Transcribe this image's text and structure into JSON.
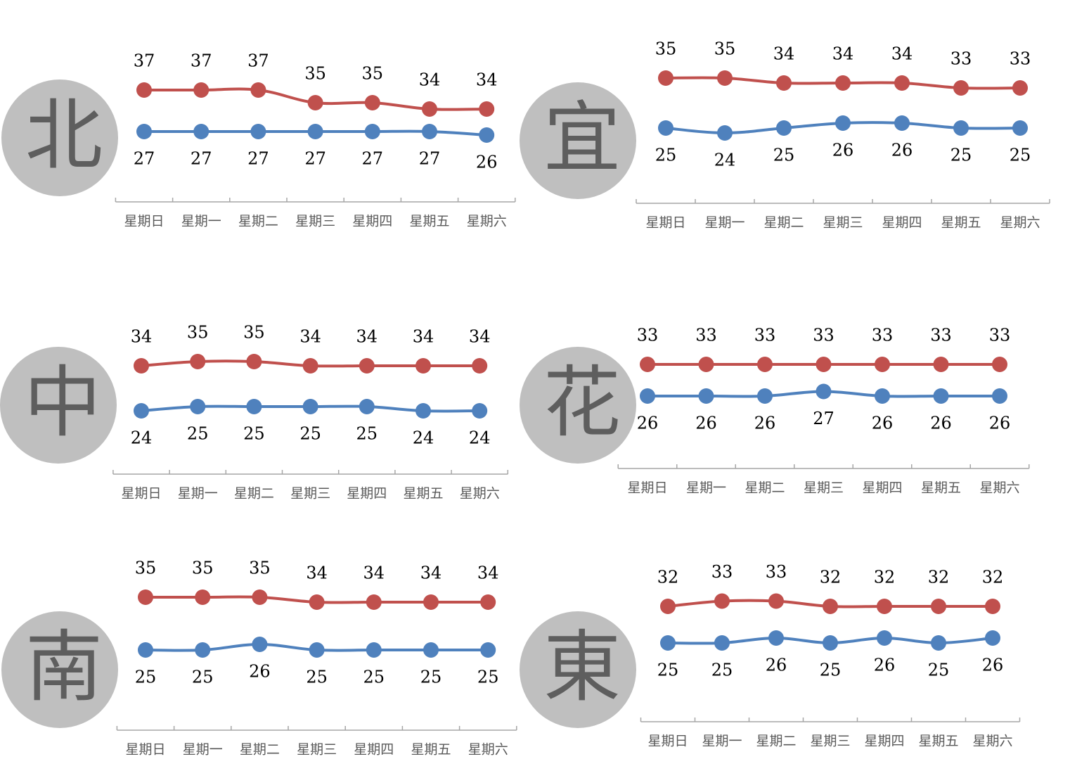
{
  "colors": {
    "high": "#c0504d",
    "low": "#4f81bd",
    "badge": "#bfbfbf",
    "axis": "#a6a6a6"
  },
  "chart_data": [
    {
      "type": "line",
      "region": "北",
      "categories": [
        "星期日",
        "星期一",
        "星期二",
        "星期三",
        "星期四",
        "星期五",
        "星期六"
      ],
      "series": [
        {
          "values": [
            37,
            37,
            37,
            35,
            35,
            34,
            34
          ],
          "color": "#c0504d"
        },
        {
          "values": [
            27,
            27,
            27,
            27,
            27,
            27,
            26
          ],
          "color": "#4f81bd"
        }
      ],
      "legend": "none",
      "grid": false
    },
    {
      "type": "line",
      "region": "宜",
      "categories": [
        "星期日",
        "星期一",
        "星期二",
        "星期三",
        "星期四",
        "星期五",
        "星期六"
      ],
      "series": [
        {
          "values": [
            35,
            35,
            34,
            34,
            34,
            33,
            33
          ],
          "color": "#c0504d"
        },
        {
          "values": [
            25,
            24,
            25,
            26,
            26,
            25,
            25
          ],
          "color": "#4f81bd"
        }
      ],
      "legend": "none",
      "grid": false
    },
    {
      "type": "line",
      "region": "中",
      "categories": [
        "星期日",
        "星期一",
        "星期二",
        "星期三",
        "星期四",
        "星期五",
        "星期六"
      ],
      "series": [
        {
          "values": [
            34,
            35,
            35,
            34,
            34,
            34,
            34
          ],
          "color": "#c0504d"
        },
        {
          "values": [
            24,
            25,
            25,
            25,
            25,
            24,
            24
          ],
          "color": "#4f81bd"
        }
      ],
      "legend": "none",
      "grid": false
    },
    {
      "type": "line",
      "region": "花",
      "categories": [
        "星期日",
        "星期一",
        "星期二",
        "星期三",
        "星期四",
        "星期五",
        "星期六"
      ],
      "series": [
        {
          "values": [
            33,
            33,
            33,
            33,
            33,
            33,
            33
          ],
          "color": "#c0504d"
        },
        {
          "values": [
            26,
            26,
            26,
            27,
            26,
            26,
            26
          ],
          "color": "#4f81bd"
        }
      ],
      "legend": "none",
      "grid": false
    },
    {
      "type": "line",
      "region": "南",
      "categories": [
        "星期日",
        "星期一",
        "星期二",
        "星期三",
        "星期四",
        "星期五",
        "星期六"
      ],
      "series": [
        {
          "values": [
            35,
            35,
            35,
            34,
            34,
            34,
            34
          ],
          "color": "#c0504d"
        },
        {
          "values": [
            25,
            25,
            26,
            25,
            25,
            25,
            25
          ],
          "color": "#4f81bd"
        }
      ],
      "legend": "none",
      "grid": false
    },
    {
      "type": "line",
      "region": "東",
      "categories": [
        "星期日",
        "星期一",
        "星期二",
        "星期三",
        "星期四",
        "星期五",
        "星期六"
      ],
      "series": [
        {
          "values": [
            32,
            33,
            33,
            32,
            32,
            32,
            32
          ],
          "color": "#c0504d"
        },
        {
          "values": [
            25,
            25,
            26,
            25,
            26,
            25,
            26
          ],
          "color": "#4f81bd"
        }
      ],
      "legend": "none",
      "grid": false
    }
  ]
}
